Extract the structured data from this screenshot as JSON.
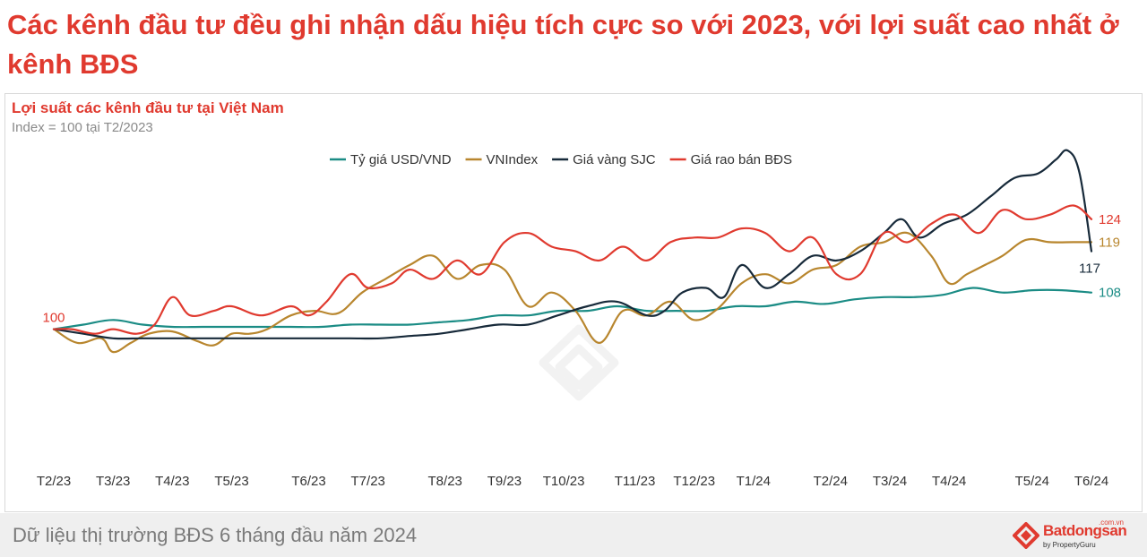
{
  "headline": "Các kênh đầu tư đều ghi nhận dấu hiệu tích cực so với 2023, với lợi suất cao nhất ở kênh BĐS",
  "footer": {
    "text": "Dữ liệu thị trường BĐS 6 tháng đầu năm 2024",
    "logo_name": "Batdongsan",
    "logo_domain": ".com.vn",
    "logo_by": "by PropertyGuru"
  },
  "chart_data": {
    "type": "line",
    "title": "Lợi suất các kênh đầu tư tại Việt Nam",
    "subtitle": "Index = 100 tại T2/2023",
    "legend_position": "top",
    "grid": false,
    "y_axis_shown": false,
    "ylim": [
      70,
      140
    ],
    "x_ticks": [
      "T2/23",
      "T3/23",
      "T4/23",
      "T5/23",
      "T6/23",
      "T7/23",
      "T8/23",
      "T9/23",
      "T10/23",
      "T11/23",
      "T12/23",
      "T1/24",
      "T2/24",
      "T3/24",
      "T4/24",
      "T5/24",
      "T6/24"
    ],
    "x_tick_positions": [
      0,
      1,
      2,
      3,
      4.3,
      5.3,
      6.6,
      7.6,
      8.6,
      9.8,
      10.8,
      11.8,
      13.1,
      14.1,
      15.1,
      16.5,
      17.5
    ],
    "annotations": [
      {
        "text": "100",
        "x": 0,
        "y": 100,
        "color": "#e03a2f",
        "anchor": "above"
      },
      {
        "text": "124",
        "x": 17.5,
        "y": 124,
        "color": "#e03a2f",
        "anchor": "right"
      },
      {
        "text": "119",
        "x": 17.5,
        "y": 119,
        "color": "#b8862e",
        "anchor": "right"
      },
      {
        "text": "117",
        "x": 17.5,
        "y": 117,
        "color": "#172a3a",
        "anchor": "below"
      },
      {
        "text": "108",
        "x": 17.5,
        "y": 108,
        "color": "#1b8c85",
        "anchor": "right"
      }
    ],
    "series": [
      {
        "name": "Tỷ giá USD/VND",
        "color": "#1b8c85",
        "x": [
          0,
          0.5,
          1,
          1.5,
          2,
          2.5,
          3,
          3.5,
          4,
          4.5,
          5,
          5.5,
          6,
          6.5,
          7,
          7.5,
          8,
          8.5,
          9,
          9.5,
          10,
          10.5,
          11,
          11.5,
          12,
          12.5,
          13,
          13.5,
          14,
          14.5,
          15,
          15.5,
          16,
          16.5,
          17,
          17.5
        ],
        "y": [
          100,
          101,
          102,
          101,
          100.5,
          100.5,
          100.5,
          100.5,
          100.5,
          100.5,
          101,
          101,
          101,
          101.5,
          102,
          103,
          103,
          104,
          104,
          105,
          104,
          104,
          104,
          105,
          105,
          106,
          105.5,
          106.5,
          107,
          107,
          107.5,
          109,
          108,
          108.5,
          108.5,
          108
        ]
      },
      {
        "name": "VNIndex",
        "color": "#b8862e",
        "x": [
          0,
          0.4,
          0.8,
          1,
          1.3,
          1.6,
          2,
          2.4,
          2.7,
          3,
          3.3,
          3.6,
          4,
          4.4,
          4.8,
          5.2,
          5.6,
          6,
          6.4,
          6.8,
          7.2,
          7.6,
          8,
          8.4,
          8.8,
          9.2,
          9.6,
          10,
          10.4,
          10.8,
          11.2,
          11.6,
          12,
          12.4,
          12.8,
          13.2,
          13.6,
          14,
          14.4,
          14.8,
          15.1,
          15.4,
          15.7,
          16,
          16.4,
          16.8,
          17.2,
          17.5
        ],
        "y": [
          100,
          97,
          98,
          95,
          97,
          99,
          99.5,
          97.5,
          96.5,
          99,
          99,
          100,
          103,
          104,
          103.5,
          108,
          111,
          114,
          116,
          111,
          114,
          113,
          105,
          108,
          104,
          97,
          104,
          103,
          106,
          102,
          104.5,
          110,
          112,
          110,
          113,
          114,
          118,
          119,
          121,
          116,
          110,
          112,
          114,
          116,
          119.5,
          119,
          119,
          119
        ]
      },
      {
        "name": "Giá vàng SJC",
        "color": "#172a3a",
        "x": [
          0,
          0.5,
          1,
          1.5,
          2,
          2.5,
          3,
          3.5,
          4,
          4.5,
          5,
          5.5,
          6,
          6.5,
          7,
          7.5,
          8,
          8.5,
          9,
          9.5,
          10,
          10.3,
          10.6,
          11,
          11.3,
          11.6,
          12,
          12.4,
          12.8,
          13.2,
          13.6,
          14,
          14.3,
          14.6,
          15,
          15.4,
          15.8,
          16.2,
          16.6,
          16.9,
          17.1,
          17.3,
          17.5
        ],
        "y": [
          100,
          99,
          98,
          98,
          98,
          98,
          98,
          98,
          98,
          98,
          98,
          98,
          98.5,
          99,
          100,
          101,
          101,
          103,
          105,
          106,
          103,
          104,
          108,
          109,
          107,
          114,
          109,
          112,
          116,
          115,
          117,
          121,
          124,
          120,
          123,
          125,
          129,
          133,
          134,
          137,
          139,
          134,
          117
        ]
      },
      {
        "name": "Giá rao bán BĐS",
        "color": "#e03a2f",
        "x": [
          0,
          0.3,
          0.7,
          1,
          1.4,
          1.7,
          2,
          2.3,
          2.7,
          3,
          3.5,
          4,
          4.3,
          4.6,
          5,
          5.3,
          5.7,
          6,
          6.4,
          6.8,
          7.2,
          7.6,
          8,
          8.4,
          8.8,
          9.2,
          9.6,
          10,
          10.4,
          10.8,
          11.2,
          11.6,
          12,
          12.4,
          12.8,
          13.2,
          13.6,
          14,
          14.4,
          14.8,
          15.2,
          15.6,
          16,
          16.4,
          16.8,
          17.2,
          17.5
        ],
        "y": [
          100,
          100,
          99,
          100,
          99,
          101,
          107,
          103,
          104,
          105,
          103,
          105,
          103,
          106,
          112,
          109,
          110,
          113,
          111,
          115,
          112,
          119,
          121,
          118,
          117,
          115,
          118,
          115,
          119,
          120,
          120,
          122,
          121,
          117,
          120,
          112,
          112,
          121,
          119,
          123,
          125,
          121,
          126,
          124,
          125,
          127,
          124
        ]
      }
    ]
  }
}
